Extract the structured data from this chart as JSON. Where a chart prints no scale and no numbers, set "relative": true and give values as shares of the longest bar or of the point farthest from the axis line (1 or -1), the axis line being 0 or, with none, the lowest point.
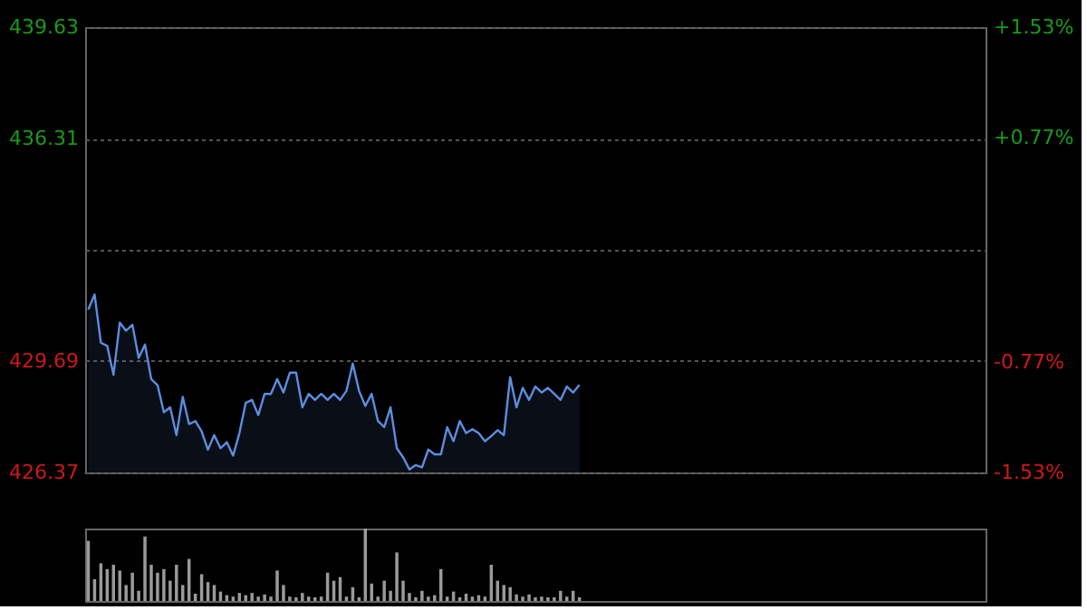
{
  "chart_data": [
    {
      "type": "area",
      "categories": [
        null,
        null,
        null,
        null,
        null,
        null,
        null,
        null,
        null,
        null,
        null,
        null,
        null,
        null,
        null,
        null,
        null,
        null,
        null,
        null,
        null,
        null,
        null,
        null,
        null,
        null,
        null,
        null,
        null,
        null,
        null,
        null,
        null,
        null,
        null,
        null,
        null,
        null,
        null,
        null,
        null,
        null,
        null,
        null,
        null,
        null,
        null,
        null,
        null,
        null,
        null,
        null,
        null,
        null,
        null,
        null,
        null,
        null,
        null,
        null,
        null,
        null,
        null,
        null,
        null,
        null,
        null,
        null,
        null,
        null,
        null,
        null,
        null,
        null,
        null,
        null,
        null,
        null,
        null,
        null,
        null,
        null,
        null,
        null,
        null,
        null,
        null,
        null,
        null,
        null,
        null,
        null,
        null,
        null,
        null,
        null,
        null,
        null,
        null,
        null,
        null,
        null,
        null,
        null,
        null,
        null,
        null,
        null,
        null,
        null,
        null,
        null,
        null,
        null,
        null,
        null,
        null,
        null,
        null,
        null,
        null,
        null,
        null,
        null,
        null,
        null,
        null,
        null,
        null,
        null,
        null,
        null,
        null,
        null,
        null,
        null,
        null,
        null,
        null,
        null,
        null,
        null,
        null
      ],
      "ylim": [
        426.37,
        439.63
      ],
      "yticks": [
        426.37,
        429.69,
        {
          "value": 433.0,
          "label": null
        },
        436.31,
        439.63
      ],
      "y2lim": [
        -1.53,
        1.53
      ],
      "y2ticks": [
        {
          "value": -1.53,
          "label": "-1.53%"
        },
        {
          "value": -0.77,
          "label": "-0.77%"
        },
        {
          "value": 0.77,
          "label": "+0.77%"
        },
        {
          "value": 1.53,
          "label": "+1.53%"
        }
      ],
      "grid": "y",
      "series": [
        {
          "color": "#5b8ee0",
          "values": [
            431.22,
            431.67,
            430.23,
            430.14,
            429.28,
            430.83,
            430.59,
            430.77,
            429.78,
            430.18,
            429.15,
            428.97,
            428.16,
            428.31,
            427.48,
            428.62,
            427.81,
            427.9,
            427.59,
            427.05,
            427.48,
            427.09,
            427.27,
            426.87,
            427.54,
            428.44,
            428.53,
            428.08,
            428.71,
            428.71,
            429.15,
            428.75,
            429.34,
            429.34,
            428.31,
            428.71,
            428.53,
            428.71,
            428.53,
            428.71,
            428.53,
            428.8,
            429.61,
            428.8,
            428.35,
            428.71,
            427.9,
            427.72,
            428.31,
            427.09,
            426.82,
            426.46,
            426.59,
            426.52,
            427.05,
            426.91,
            426.91,
            427.72,
            427.3,
            427.9,
            427.54,
            427.66,
            427.54,
            427.3,
            427.45,
            427.63,
            427.48,
            429.21,
            428.31,
            428.89,
            428.53,
            428.93,
            428.75,
            428.89,
            428.71,
            428.53,
            428.93,
            428.75,
            428.98,
            null,
            null,
            null,
            null,
            null,
            null,
            null,
            null,
            null,
            null,
            null,
            null,
            null,
            null,
            null,
            null,
            null,
            null,
            null,
            null,
            null,
            null,
            null,
            null,
            null,
            null,
            null,
            null,
            null,
            null,
            null,
            null,
            null,
            null,
            null,
            null,
            null,
            null,
            null,
            null,
            null,
            null,
            null,
            null,
            null,
            null,
            null,
            null,
            null,
            null,
            null,
            null,
            null,
            null,
            null,
            null,
            null,
            null,
            null,
            null,
            null,
            null,
            null,
            null
          ]
        }
      ]
    },
    {
      "type": "bar",
      "relative": true,
      "categories": [
        null,
        null,
        null,
        null,
        null,
        null,
        null,
        null,
        null,
        null,
        null,
        null,
        null,
        null,
        null,
        null,
        null,
        null,
        null,
        null,
        null,
        null,
        null,
        null,
        null,
        null,
        null,
        null,
        null,
        null,
        null,
        null,
        null,
        null,
        null,
        null,
        null,
        null,
        null,
        null,
        null,
        null,
        null,
        null,
        null,
        null,
        null,
        null,
        null,
        null,
        null,
        null,
        null,
        null,
        null,
        null,
        null,
        null,
        null,
        null,
        null,
        null,
        null,
        null,
        null,
        null,
        null,
        null,
        null,
        null,
        null,
        null,
        null,
        null,
        null,
        null,
        null,
        null,
        null,
        null,
        null,
        null,
        null,
        null,
        null,
        null,
        null,
        null,
        null,
        null,
        null,
        null,
        null,
        null,
        null,
        null,
        null,
        null,
        null,
        null,
        null,
        null,
        null,
        null,
        null,
        null,
        null,
        null,
        null,
        null,
        null,
        null,
        null,
        null,
        null,
        null,
        null,
        null,
        null,
        null,
        null,
        null,
        null,
        null,
        null,
        null,
        null,
        null,
        null,
        null,
        null,
        null,
        null,
        null,
        null,
        null,
        null,
        null,
        null,
        null,
        null,
        null,
        null
      ],
      "series": [
        {
          "color": "#9a9a9a",
          "values": [
            0.83,
            0.3,
            0.52,
            0.44,
            0.5,
            0.42,
            0.22,
            0.39,
            0.14,
            0.89,
            0.5,
            0.39,
            0.44,
            0.28,
            0.5,
            0.22,
            0.58,
            0.1,
            0.37,
            0.26,
            0.22,
            0.13,
            0.08,
            0.06,
            0.11,
            0.08,
            0.11,
            0.06,
            0.09,
            0.06,
            0.42,
            0.22,
            0.06,
            0.05,
            0.11,
            0.06,
            0.05,
            0.06,
            0.39,
            0.28,
            0.33,
            0.06,
            0.19,
            0.05,
            1.0,
            0.24,
            0.06,
            0.28,
            0.14,
            0.67,
            0.28,
            0.11,
            0.05,
            0.14,
            0.06,
            0.08,
            0.44,
            0.06,
            0.13,
            0.05,
            0.1,
            0.06,
            0.08,
            0.06,
            0.5,
            0.28,
            0.22,
            0.19,
            0.09,
            0.06,
            0.09,
            0.05,
            0.06,
            0.05,
            0.05,
            0.14,
            0.06,
            0.14,
            0.05,
            null,
            null,
            null,
            null,
            null,
            null,
            null,
            null,
            null,
            null,
            null,
            null,
            null,
            null,
            null,
            null,
            null,
            null,
            null,
            null,
            null,
            null,
            null,
            null,
            null,
            null,
            null,
            null,
            null,
            null,
            null,
            null,
            null,
            null,
            null,
            null,
            null,
            null,
            null,
            null,
            null,
            null,
            null,
            null,
            null,
            null,
            null,
            null,
            null,
            null,
            null,
            null,
            null,
            null,
            null,
            null,
            null,
            null,
            null,
            null,
            null,
            null,
            null,
            null
          ]
        }
      ]
    }
  ]
}
